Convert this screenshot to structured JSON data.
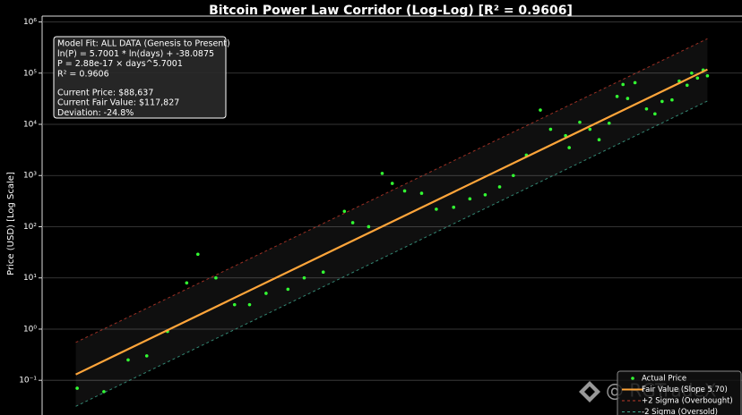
{
  "chart_data": {
    "type": "scatter",
    "title": "Bitcoin Power Law Corridor (Log-Log) [R² = 0.9606]",
    "y_label": "Price (USD) [Log Scale]",
    "y_scale": "log",
    "x_scale": "log",
    "xlim": [
      490,
      7050
    ],
    "ylim": [
      0.021,
      1300000
    ],
    "yticks": [
      {
        "value": 0.1,
        "label": "10⁻¹"
      },
      {
        "value": 1,
        "label": "10⁰"
      },
      {
        "value": 10,
        "label": "10¹"
      },
      {
        "value": 100,
        "label": "10²"
      },
      {
        "value": 1000,
        "label": "10³"
      },
      {
        "value": 10000,
        "label": "10⁴"
      },
      {
        "value": 100000,
        "label": "10⁵"
      },
      {
        "value": 1000000,
        "label": "10⁶"
      }
    ],
    "grid": true,
    "legend": "lower right",
    "annotation": [
      "Model Fit: ALL DATA (Genesis to Present)",
      "ln(P) = 5.7001 * ln(days) + -38.0875",
      "P = 2.88e-17 × days^5.7001",
      "R² = 0.9606",
      "Current Price: $88,637",
      "Current Fair Value: $117,827",
      "Deviation: -24.8%"
    ],
    "watermark": "@ RGTradeX",
    "series": [
      {
        "name": "Actual Price",
        "kind": "points",
        "color": "#33ff33",
        "x": [
          560,
          620,
          680,
          730,
          790,
          850,
          887,
          950,
          1020,
          1080,
          1150,
          1250,
          1330,
          1430,
          1550,
          1600,
          1700,
          1790,
          1860,
          1950,
          2080,
          2200,
          2350,
          2500,
          2650,
          2800,
          2950,
          3100,
          3270,
          3400,
          3600,
          3650,
          3800,
          3950,
          4090,
          4250,
          4380,
          4480,
          4560,
          4690,
          4900,
          5060,
          5200,
          5400,
          5550,
          5720,
          5820,
          5950,
          6080,
          6180
        ],
        "values": [
          0.07,
          0.06,
          0.25,
          0.3,
          0.9,
          8,
          29,
          10,
          3,
          3,
          5,
          6,
          10,
          13,
          200,
          120,
          100,
          1100,
          700,
          500,
          450,
          220,
          240,
          350,
          420,
          600,
          1000,
          2500,
          19000,
          8000,
          6000,
          3500,
          11000,
          8000,
          5000,
          10500,
          35000,
          60000,
          32000,
          65000,
          20000,
          16000,
          28000,
          30000,
          70000,
          58000,
          100000,
          80000,
          115000,
          88637
        ]
      },
      {
        "name": "Fair Value (Slope 5.70)",
        "kind": "line",
        "color": "#ffa53a",
        "x": [
          557,
          6180
        ],
        "values": [
          0.13,
          117827
        ]
      },
      {
        "name": "+2 Sigma (Overbought)",
        "kind": "dashed",
        "color": "#c0392b",
        "x": [
          557,
          6180
        ],
        "values": [
          0.55,
          470000
        ]
      },
      {
        "name": "-2 Sigma (Oversold)",
        "kind": "dashed",
        "color": "#3fa88f",
        "x": [
          557,
          6180
        ],
        "values": [
          0.031,
          28500
        ]
      }
    ]
  }
}
